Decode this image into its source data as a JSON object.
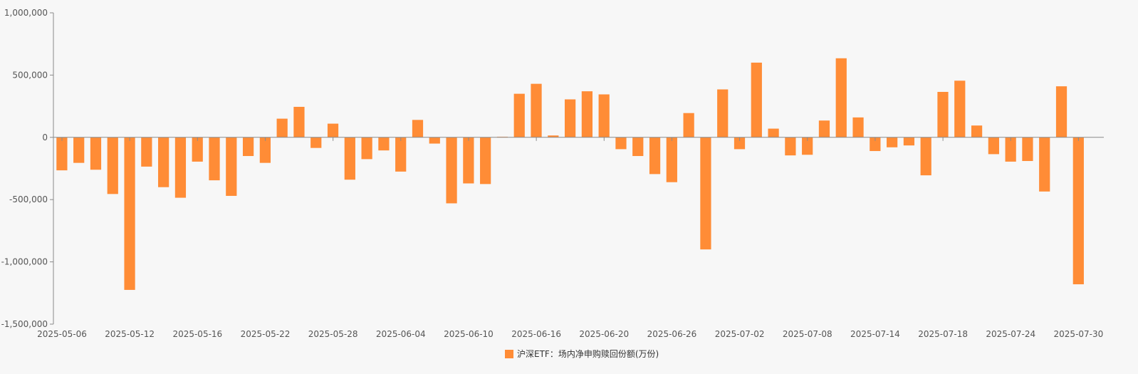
{
  "colors": {
    "background": "#f7f7f7",
    "bar": "#ff8c36",
    "axis": "#8a8a8a",
    "tick_text": "#555555"
  },
  "chart_data": {
    "type": "bar",
    "grid": false,
    "legend_position": "bottom-center",
    "ylim": [
      -1500000,
      1000000
    ],
    "y_ticks": [
      1000000,
      500000,
      0,
      -500000,
      -1000000,
      -1500000
    ],
    "y_tick_labels": [
      "1,000,000",
      "500,000",
      "0",
      "-500,000",
      "-1,000,000",
      "-1,500,000"
    ],
    "x_tick_labels": [
      "2025-05-06",
      "2025-05-12",
      "2025-05-16",
      "2025-05-22",
      "2025-05-28",
      "2025-06-04",
      "2025-06-10",
      "2025-06-16",
      "2025-06-20",
      "2025-06-26",
      "2025-07-02",
      "2025-07-08",
      "2025-07-14",
      "2025-07-18",
      "2025-07-24",
      "2025-07-30"
    ],
    "categories": [
      "2025-05-06",
      "2025-05-07",
      "2025-05-08",
      "2025-05-09",
      "2025-05-12",
      "2025-05-13",
      "2025-05-14",
      "2025-05-15",
      "2025-05-16",
      "2025-05-19",
      "2025-05-20",
      "2025-05-21",
      "2025-05-22",
      "2025-05-23",
      "2025-05-26",
      "2025-05-27",
      "2025-05-28",
      "2025-05-29",
      "2025-05-30",
      "2025-06-03",
      "2025-06-04",
      "2025-06-05",
      "2025-06-06",
      "2025-06-09",
      "2025-06-10",
      "2025-06-11",
      "2025-06-12",
      "2025-06-13",
      "2025-06-16",
      "2025-06-17",
      "2025-06-18",
      "2025-06-19",
      "2025-06-20",
      "2025-06-23",
      "2025-06-24",
      "2025-06-25",
      "2025-06-26",
      "2025-06-27",
      "2025-06-30",
      "2025-07-01",
      "2025-07-02",
      "2025-07-03",
      "2025-07-04",
      "2025-07-07",
      "2025-07-08",
      "2025-07-09",
      "2025-07-10",
      "2025-07-11",
      "2025-07-14",
      "2025-07-15",
      "2025-07-16",
      "2025-07-17",
      "2025-07-18",
      "2025-07-21",
      "2025-07-22",
      "2025-07-23",
      "2025-07-24",
      "2025-07-25",
      "2025-07-28",
      "2025-07-29",
      "2025-07-30",
      "2025-07-31"
    ],
    "series": [
      {
        "name": "沪深ETF：场内净申购赎回份额(万份)",
        "values": [
          -265000,
          -205000,
          -260000,
          -455000,
          -1225000,
          -235000,
          -400000,
          -485000,
          -195000,
          -345000,
          -470000,
          -150000,
          -205000,
          150000,
          245000,
          -85000,
          110000,
          -340000,
          -175000,
          -105000,
          -275000,
          140000,
          -50000,
          -530000,
          -370000,
          -375000,
          5000,
          350000,
          430000,
          15000,
          305000,
          370000,
          345000,
          -95000,
          -150000,
          -295000,
          -360000,
          195000,
          -900000,
          385000,
          -95000,
          600000,
          70000,
          -145000,
          -140000,
          135000,
          635000,
          160000,
          -110000,
          -80000,
          -65000,
          -305000,
          365000,
          455000,
          95000,
          -135000,
          -195000,
          -190000,
          -435000,
          410000,
          -1180000,
          0
        ]
      }
    ]
  }
}
